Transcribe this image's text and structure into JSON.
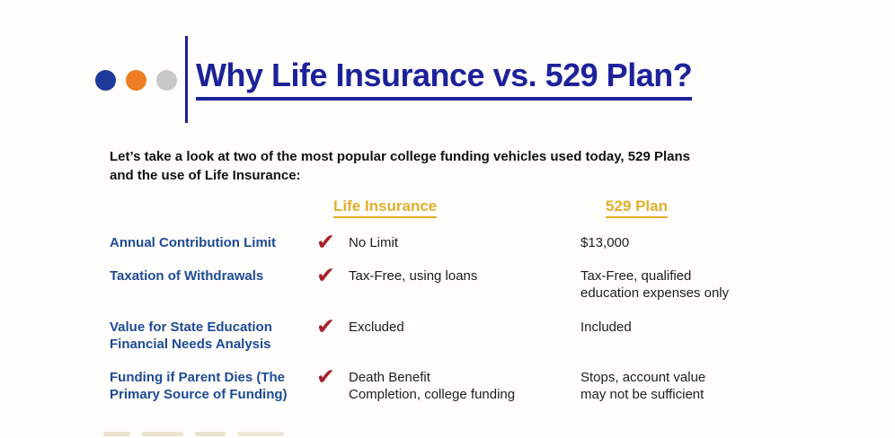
{
  "slide": {
    "title": "Why Life Insurance vs. 529 Plan?",
    "intro": "Let’s take a look at two of the most popular college funding vehicles used today, 529 Plans\nand the use of Life Insurance:",
    "check_icon": "✔",
    "columns": [
      {
        "label": "Life Insurance"
      },
      {
        "label": "529 Plan"
      }
    ],
    "rows": [
      {
        "label": "Annual Contribution Limit",
        "life_insurance": "No Limit",
        "plan_529": "$13,000"
      },
      {
        "label": "Taxation of Withdrawals",
        "life_insurance": "Tax-Free, using loans",
        "plan_529": "Tax-Free, qualified\neducation expenses only"
      },
      {
        "label": "Value for State Education\nFinancial Needs Analysis",
        "life_insurance": "Excluded",
        "plan_529": "Included"
      },
      {
        "label": "Funding if Parent Dies (The\nPrimary Source of Funding)",
        "life_insurance": "Death Benefit\nCompletion, college funding",
        "plan_529": "Stops, account value\nmay not be sufficient"
      }
    ],
    "colors": {
      "title_navy": "#1d229a",
      "label_blue": "#1d4a96",
      "header_gold": "#e3ae2c",
      "check_red": "#a8202e",
      "dot_blue": "#1e3a9b",
      "dot_orange": "#ee7d23",
      "dot_gray": "#c8c8c8"
    }
  }
}
